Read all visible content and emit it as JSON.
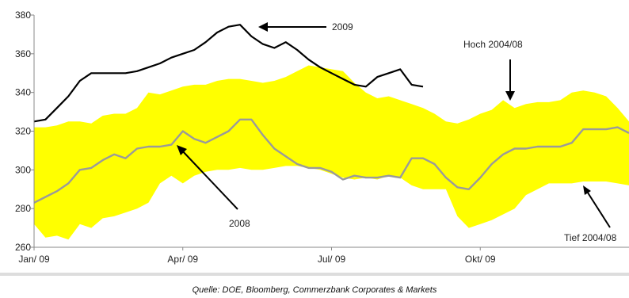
{
  "chart_data": {
    "type": "area",
    "ylim": [
      260,
      380
    ],
    "yticks": [
      260,
      280,
      300,
      320,
      340,
      360,
      380
    ],
    "xlim": [
      0,
      52
    ],
    "xtick_labels": [
      "Jan/ 09",
      "Apr/ 09",
      "Jul/ 09",
      "Okt/ 09"
    ],
    "xtick_positions": [
      0,
      13,
      26,
      39
    ],
    "grid": false,
    "band": {
      "x": [
        0,
        1,
        2,
        3,
        4,
        5,
        6,
        7,
        8,
        9,
        10,
        11,
        12,
        13,
        14,
        15,
        16,
        17,
        18,
        19,
        20,
        21,
        22,
        23,
        24,
        25,
        26,
        27,
        28,
        29,
        30,
        31,
        32,
        33,
        34,
        35,
        36,
        37,
        38,
        39,
        40,
        41,
        42,
        43,
        44,
        45,
        46,
        47,
        48,
        49,
        50,
        51,
        52
      ],
      "high": [
        322,
        322,
        323,
        325,
        325,
        324,
        328,
        329,
        329,
        332,
        340,
        339,
        341,
        343,
        344,
        344,
        346,
        347,
        347,
        346,
        345,
        346,
        348,
        351,
        354,
        353,
        352,
        351,
        345,
        340,
        337,
        338,
        336,
        334,
        332,
        329,
        325,
        324,
        326,
        329,
        331,
        336,
        332,
        334,
        335,
        335,
        336,
        340,
        341,
        340,
        338,
        332,
        325
      ],
      "low": [
        272,
        265,
        266,
        264,
        272,
        270,
        275,
        276,
        278,
        280,
        283,
        293,
        297,
        293,
        297,
        299,
        300,
        300,
        301,
        300,
        300,
        301,
        302,
        302,
        301,
        300,
        298,
        296,
        295,
        296,
        295,
        297,
        296,
        292,
        290,
        290,
        290,
        276,
        270,
        272,
        274,
        277,
        280,
        287,
        290,
        293,
        293,
        293,
        294,
        294,
        294,
        293,
        292
      ]
    },
    "series": [
      {
        "name": "2009",
        "color": "#000000",
        "x": [
          0,
          1,
          2,
          3,
          4,
          5,
          6,
          7,
          8,
          9,
          10,
          11,
          12,
          13,
          14,
          15,
          16,
          17,
          18,
          19,
          20,
          21,
          22,
          23,
          24,
          25,
          26,
          27,
          28,
          29,
          30,
          31,
          32,
          33,
          34
        ],
        "values": [
          325,
          326,
          332,
          338,
          346,
          350,
          350,
          350,
          350,
          351,
          353,
          355,
          358,
          360,
          362,
          366,
          371,
          374,
          375,
          369,
          365,
          363,
          366,
          362,
          357,
          353,
          350,
          347,
          344,
          343,
          348,
          350,
          352,
          344,
          343
        ]
      },
      {
        "name": "2008",
        "color": "#9a9a9a",
        "x": [
          0,
          1,
          2,
          3,
          4,
          5,
          6,
          7,
          8,
          9,
          10,
          11,
          12,
          13,
          14,
          15,
          16,
          17,
          18,
          19,
          20,
          21,
          22,
          23,
          24,
          25,
          26,
          27,
          28,
          29,
          30,
          31,
          32,
          33,
          34,
          35,
          36,
          37,
          38,
          39,
          40,
          41,
          42,
          43,
          44,
          45,
          46,
          47,
          48,
          49,
          50,
          51,
          52
        ],
        "values": [
          283,
          286,
          289,
          293,
          300,
          301,
          305,
          308,
          306,
          311,
          312,
          312,
          313,
          320,
          316,
          314,
          317,
          320,
          326,
          326,
          318,
          311,
          307,
          303,
          301,
          301,
          299,
          295,
          297,
          296,
          296,
          297,
          296,
          306,
          306,
          303,
          296,
          291,
          290,
          296,
          303,
          308,
          311,
          311,
          312,
          312,
          312,
          314,
          321,
          321,
          321,
          322,
          319
        ]
      }
    ],
    "annotations": {
      "label_2009": "2009",
      "label_2008": "2008",
      "label_high": "Hoch 2004/08",
      "label_low": "Tief 2004/08"
    },
    "source": "Quelle: DOE, Bloomberg, Commerzbank Corporates & Markets"
  },
  "colors": {
    "band": "#ffff00",
    "series_2009": "#000000",
    "series_2008": "#9a9a9a",
    "axis": "#888888",
    "rule": "#dddddd"
  }
}
